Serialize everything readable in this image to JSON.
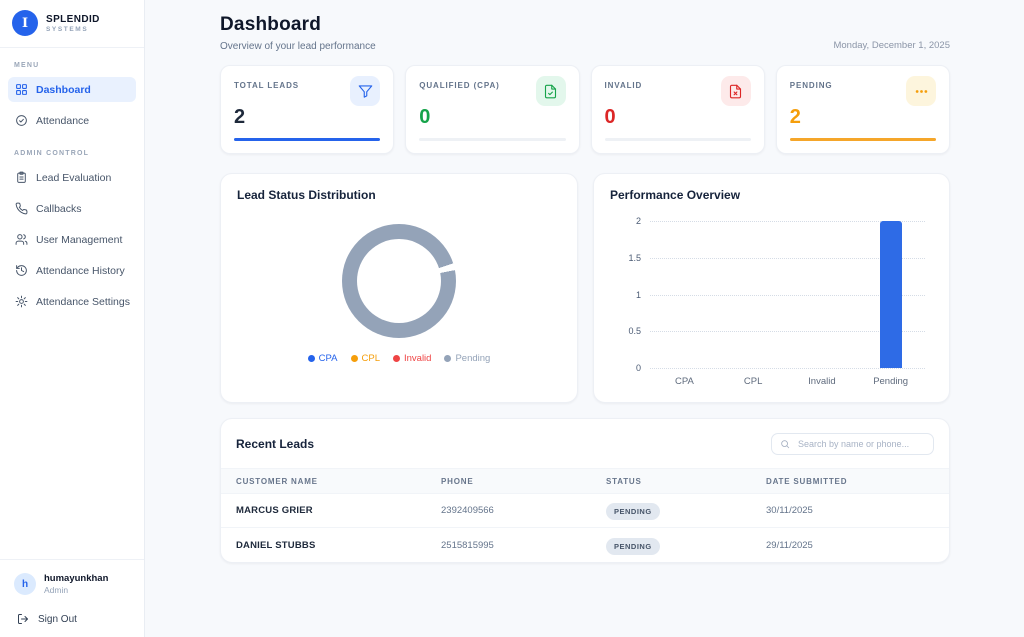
{
  "brand": {
    "initial": "I",
    "name": "SPLENDID",
    "subtitle": "SYSTEMS"
  },
  "sidebar": {
    "menu_label": "MENU",
    "menu_items": [
      {
        "label": "Dashboard",
        "icon": "dashboard-grid-icon",
        "active": true
      },
      {
        "label": "Attendance",
        "icon": "check-circle-icon",
        "active": false
      }
    ],
    "admin_label": "ADMIN CONTROL",
    "admin_items": [
      {
        "label": "Lead Evaluation",
        "icon": "clipboard-icon"
      },
      {
        "label": "Callbacks",
        "icon": "phone-icon"
      },
      {
        "label": "User Management",
        "icon": "users-icon"
      },
      {
        "label": "Attendance History",
        "icon": "history-clock-icon"
      },
      {
        "label": "Attendance Settings",
        "icon": "gear-icon"
      }
    ],
    "user": {
      "name": "humayunkhan",
      "role": "Admin",
      "avatar_initial": "h"
    },
    "signout_label": "Sign Out"
  },
  "header": {
    "title": "Dashboard",
    "subtitle": "Overview of your lead performance",
    "date": "Monday, December 1, 2025"
  },
  "stats": [
    {
      "label": "TOTAL LEADS",
      "value": "2",
      "icon": "filter-icon",
      "value_color": "#1e293b",
      "bar_color": "#2563eb",
      "icon_bg": "#e8f0fe",
      "icon_color": "#2563eb"
    },
    {
      "label": "QUALIFIED (CPA)",
      "value": "0",
      "icon": "document-check-icon",
      "value_color": "#16a34a",
      "bar_color": "#eef1f5",
      "icon_bg": "#e3f7ec",
      "icon_color": "#16a34a"
    },
    {
      "label": "INVALID",
      "value": "0",
      "icon": "document-x-icon",
      "value_color": "#dc2626",
      "bar_color": "#eef1f5",
      "icon_bg": "#fdeaea",
      "icon_color": "#dc2626"
    },
    {
      "label": "PENDING",
      "value": "2",
      "icon": "ellipsis-icon",
      "value_color": "#f59e0b",
      "bar_color": "#f5a62a",
      "icon_bg": "#fdf5dd",
      "icon_color": "#f59e0b"
    }
  ],
  "charts": {
    "donut": {
      "title": "Lead Status Distribution",
      "ring_color": "#94a3b8"
    },
    "bar": {
      "title": "Performance Overview",
      "yticks": [
        "2",
        "1.5",
        "1",
        "0.5",
        "0"
      ]
    }
  },
  "chart_data": [
    {
      "type": "pie",
      "donut": true,
      "title": "Lead Status Distribution",
      "labels": [
        "CPA",
        "CPL",
        "Invalid",
        "Pending"
      ],
      "values": [
        0,
        0,
        0,
        2
      ],
      "colors": [
        "#2563eb",
        "#f59e0b",
        "#ef4444",
        "#94a3b8"
      ],
      "legend_position": "bottom"
    },
    {
      "type": "bar",
      "title": "Performance Overview",
      "categories": [
        "CPA",
        "CPL",
        "Invalid",
        "Pending"
      ],
      "values": [
        0,
        0,
        0,
        2
      ],
      "ylim": [
        0,
        2
      ],
      "yticks": [
        0,
        0.5,
        1,
        1.5,
        2
      ],
      "bar_color": "#2e6be6",
      "grid": "dotted-horizontal",
      "legend_position": "none"
    }
  ],
  "table": {
    "title": "Recent Leads",
    "search_placeholder": "Search by name or phone...",
    "columns": [
      "CUSTOMER NAME",
      "PHONE",
      "STATUS",
      "DATE SUBMITTED"
    ],
    "rows": [
      {
        "name": "MARCUS GRIER",
        "phone": "2392409566",
        "status": "PENDING",
        "date": "30/11/2025"
      },
      {
        "name": "DANIEL STUBBS",
        "phone": "2515815995",
        "status": "PENDING",
        "date": "29/11/2025"
      }
    ]
  }
}
